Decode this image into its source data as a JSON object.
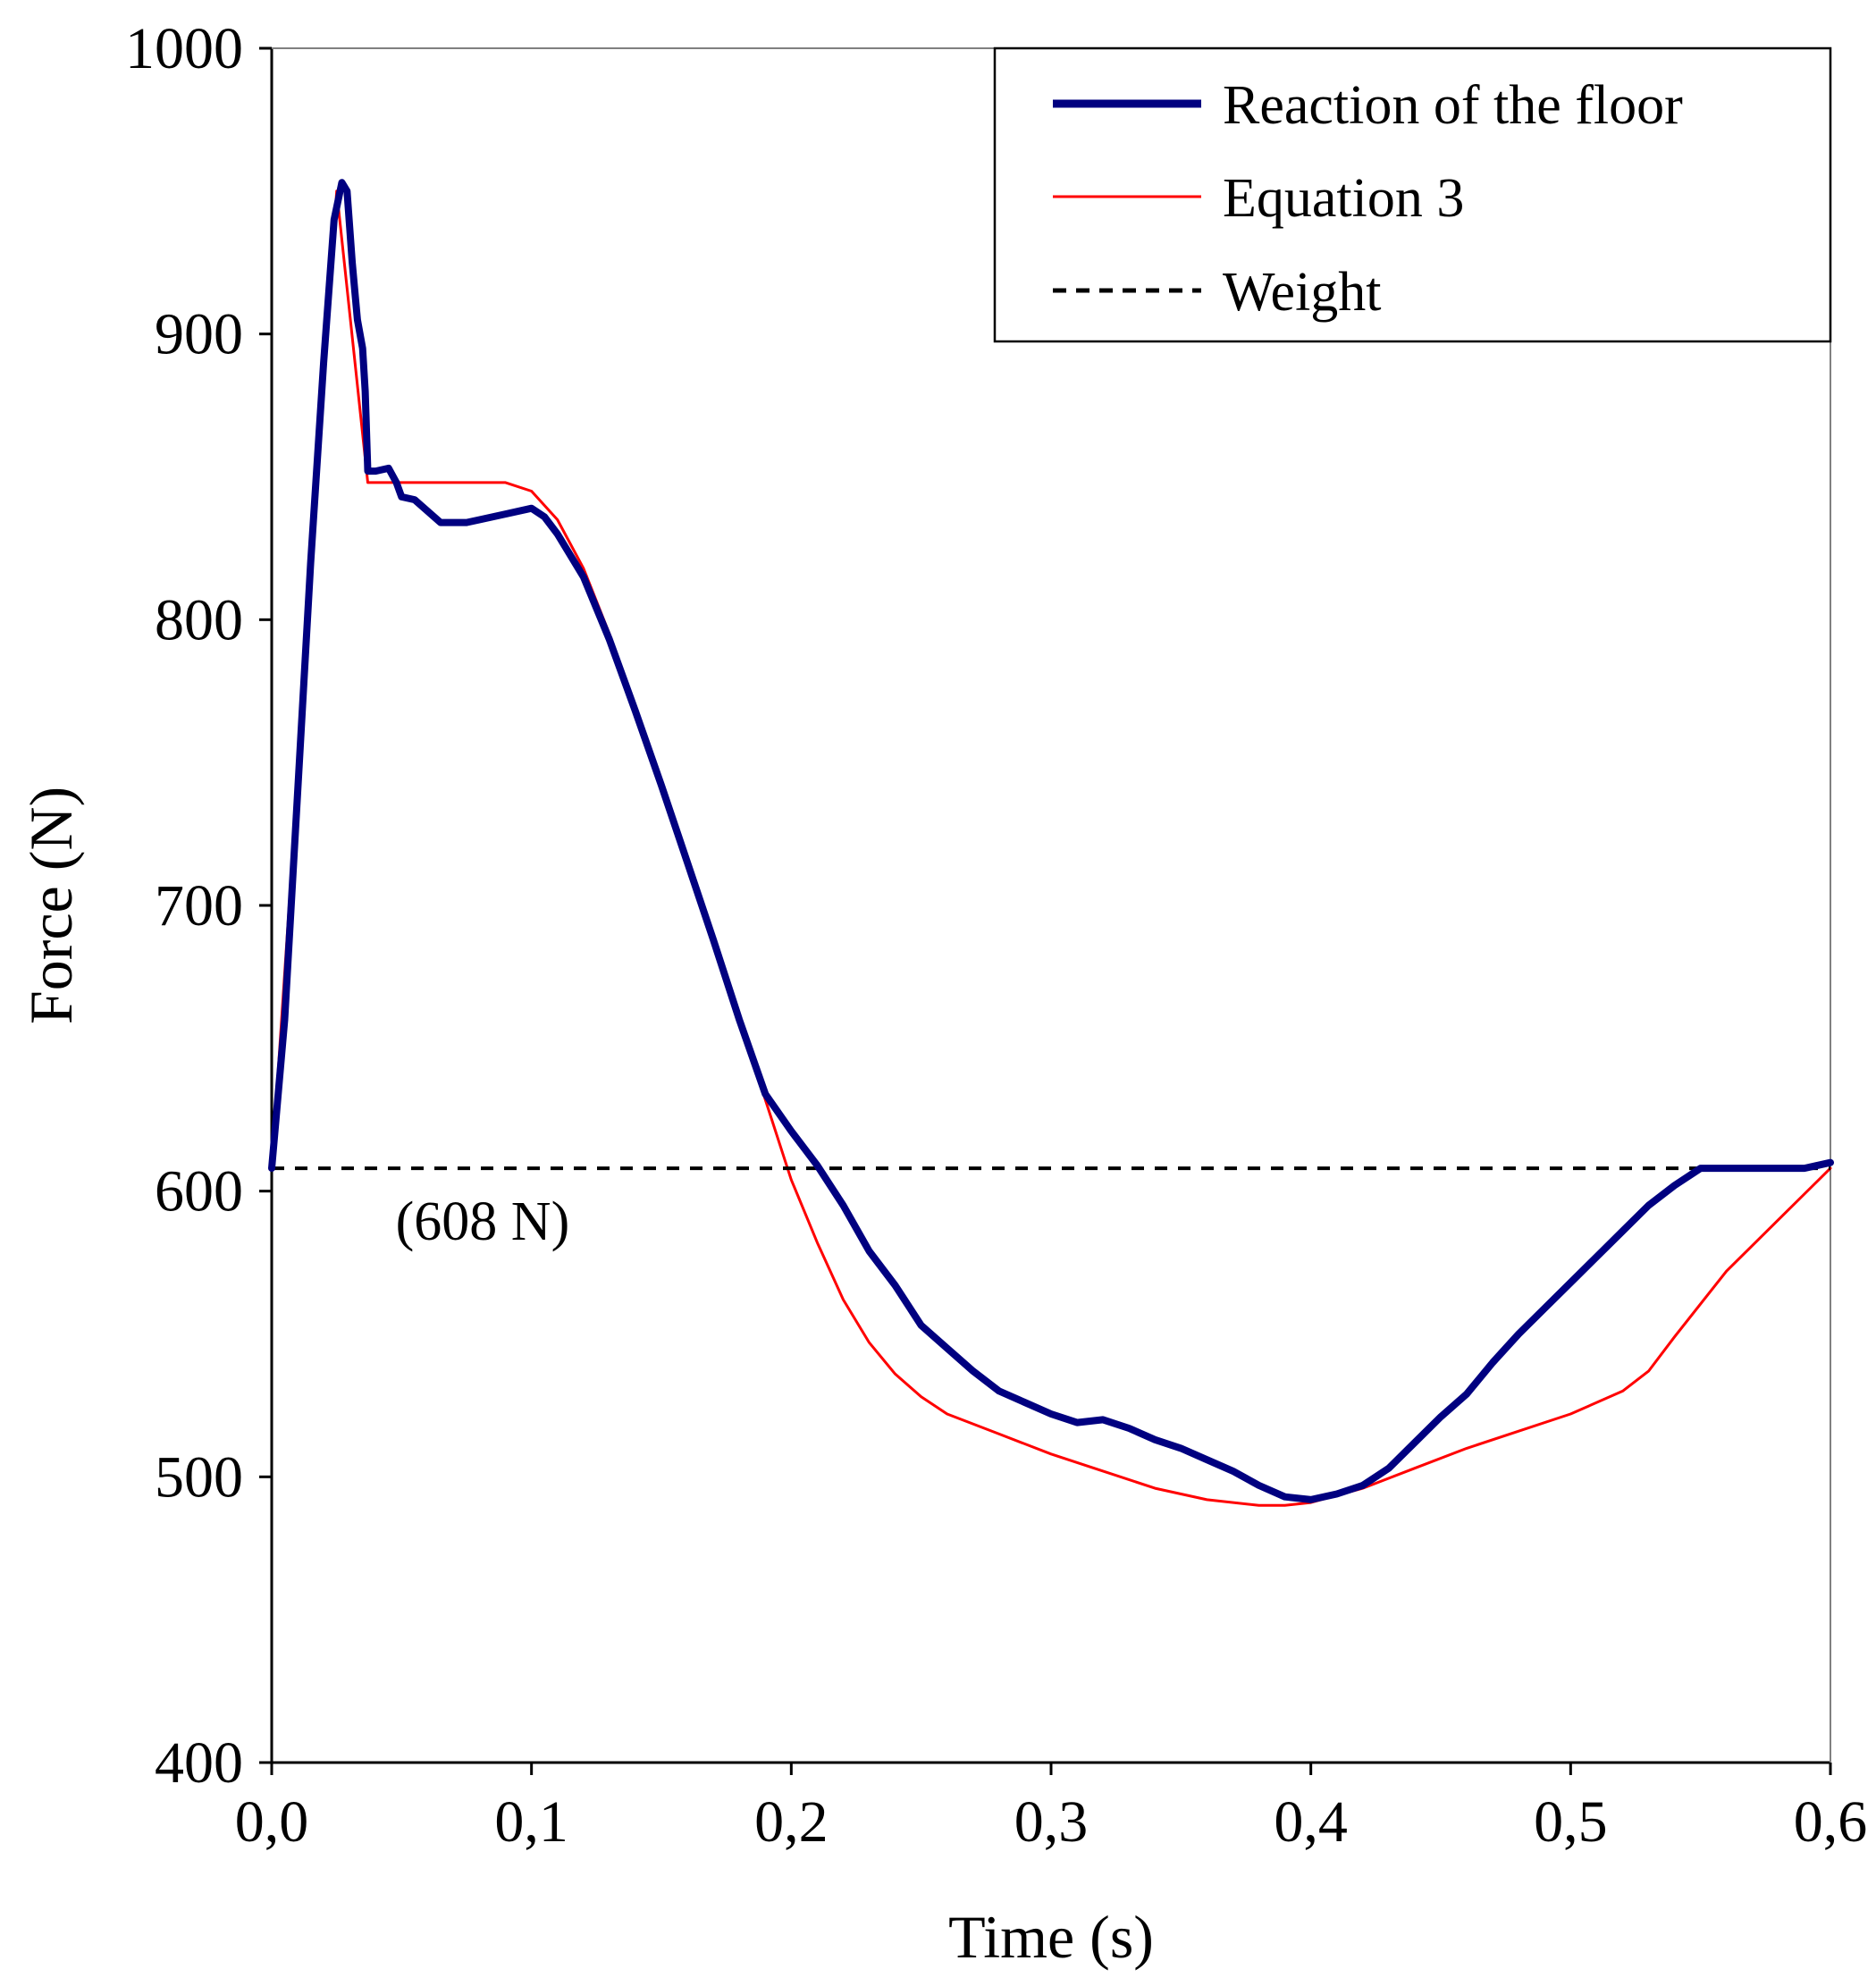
{
  "chart_data": {
    "type": "line",
    "title": "",
    "xlabel": "Time (s)",
    "ylabel": "Force (N)",
    "xlim": [
      0.0,
      0.6
    ],
    "ylim": [
      400,
      1000
    ],
    "x_ticks": [
      0.0,
      0.1,
      0.2,
      0.3,
      0.4,
      0.5,
      0.6
    ],
    "x_tick_labels": [
      "0,0",
      "0,1",
      "0,2",
      "0,3",
      "0,4",
      "0,5",
      "0,6"
    ],
    "y_ticks": [
      400,
      500,
      600,
      700,
      800,
      900,
      1000
    ],
    "y_tick_labels": [
      "400",
      "500",
      "600",
      "700",
      "800",
      "900",
      "1000"
    ],
    "grid": false,
    "legend_position": "top-right",
    "series": [
      {
        "name": "Reaction of the floor",
        "color": "#000080",
        "style": "solid-thick",
        "x": [
          0.0,
          0.005,
          0.01,
          0.015,
          0.02,
          0.024,
          0.027,
          0.029,
          0.031,
          0.033,
          0.035,
          0.036,
          0.037,
          0.04,
          0.045,
          0.048,
          0.05,
          0.055,
          0.06,
          0.065,
          0.07,
          0.075,
          0.08,
          0.09,
          0.1,
          0.105,
          0.11,
          0.12,
          0.13,
          0.14,
          0.15,
          0.16,
          0.17,
          0.18,
          0.19,
          0.2,
          0.21,
          0.22,
          0.23,
          0.24,
          0.25,
          0.26,
          0.27,
          0.28,
          0.29,
          0.3,
          0.31,
          0.32,
          0.33,
          0.34,
          0.35,
          0.36,
          0.37,
          0.38,
          0.39,
          0.4,
          0.41,
          0.42,
          0.43,
          0.44,
          0.45,
          0.46,
          0.47,
          0.48,
          0.49,
          0.5,
          0.51,
          0.52,
          0.53,
          0.54,
          0.55,
          0.56,
          0.57,
          0.58,
          0.59,
          0.6
        ],
        "y": [
          608,
          660,
          740,
          820,
          890,
          940,
          953,
          950,
          925,
          905,
          895,
          880,
          852,
          852,
          853,
          848,
          843,
          842,
          838,
          834,
          834,
          834,
          835,
          837,
          839,
          836,
          830,
          815,
          793,
          768,
          742,
          715,
          688,
          660,
          634,
          621,
          609,
          595,
          579,
          567,
          553,
          545,
          537,
          530,
          526,
          522,
          519,
          520,
          517,
          513,
          510,
          506,
          502,
          497,
          493,
          492,
          494,
          497,
          503,
          512,
          521,
          529,
          540,
          550,
          559,
          568,
          577,
          586,
          595,
          602,
          608,
          608,
          608,
          608,
          608,
          610
        ],
        "reading_note": "values read from axes (curve overlaps weight line near the end)"
      },
      {
        "name": "Equation 3",
        "color": "#ff0000",
        "style": "solid-thin",
        "x": [
          0.0,
          0.025,
          0.037,
          0.05,
          0.08,
          0.09,
          0.1,
          0.11,
          0.12,
          0.13,
          0.14,
          0.15,
          0.16,
          0.17,
          0.18,
          0.19,
          0.2,
          0.21,
          0.22,
          0.23,
          0.24,
          0.25,
          0.26,
          0.28,
          0.3,
          0.32,
          0.34,
          0.36,
          0.38,
          0.39,
          0.4,
          0.42,
          0.44,
          0.46,
          0.48,
          0.5,
          0.52,
          0.53,
          0.54,
          0.56,
          0.58,
          0.6
        ],
        "y": [
          608,
          950,
          848,
          848,
          848,
          848,
          845,
          835,
          818,
          795,
          770,
          743,
          716,
          688,
          660,
          632,
          604,
          582,
          562,
          547,
          536,
          528,
          522,
          515,
          508,
          502,
          496,
          492,
          490,
          490,
          491,
          496,
          503,
          510,
          516,
          522,
          530,
          537,
          549,
          572,
          590,
          608
        ]
      },
      {
        "name": "Weight",
        "color": "#000000",
        "style": "dashed",
        "x": [
          0.0,
          0.6
        ],
        "y": [
          608,
          608
        ]
      }
    ],
    "annotations": [
      {
        "text": "(608 N)",
        "x": 0.025,
        "y": 608
      }
    ]
  }
}
